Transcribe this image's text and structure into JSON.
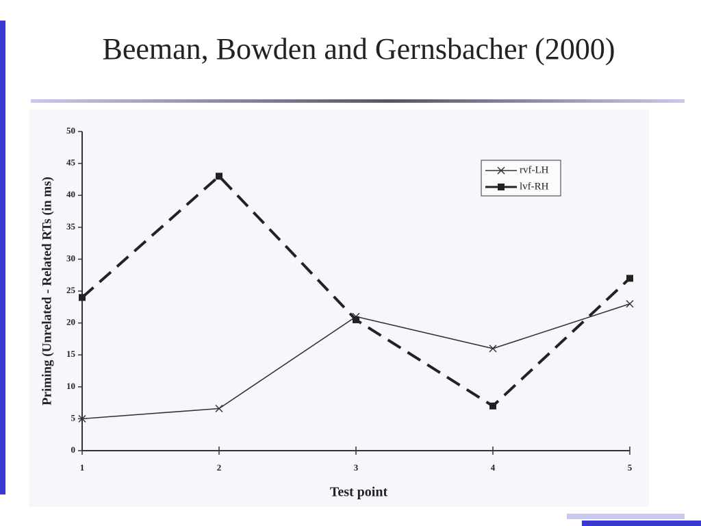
{
  "chart_data": {
    "type": "line",
    "title": "Beeman, Bowden and Gernsbacher (2000)",
    "x_label": "Test point",
    "y_label": "Priming (Unrelated - Related RTs (in ms)",
    "x": [
      1,
      2,
      3,
      4,
      5
    ],
    "xlim": [
      1,
      5
    ],
    "xticks": [
      1,
      2,
      3,
      4,
      5
    ],
    "ylim": [
      0,
      50
    ],
    "yticks": [
      0,
      5,
      10,
      15,
      20,
      25,
      30,
      35,
      40,
      45,
      50
    ],
    "legend": "upper right",
    "series": [
      {
        "name": "rvf-LH",
        "color": "#333333",
        "marker": "x",
        "dashed": false,
        "values": [
          5,
          6.6,
          21,
          16,
          23
        ]
      },
      {
        "name": "lvf-RH",
        "color": "#222222",
        "marker": "square",
        "dashed": true,
        "values": [
          24,
          43,
          20.5,
          7,
          27
        ]
      }
    ]
  }
}
